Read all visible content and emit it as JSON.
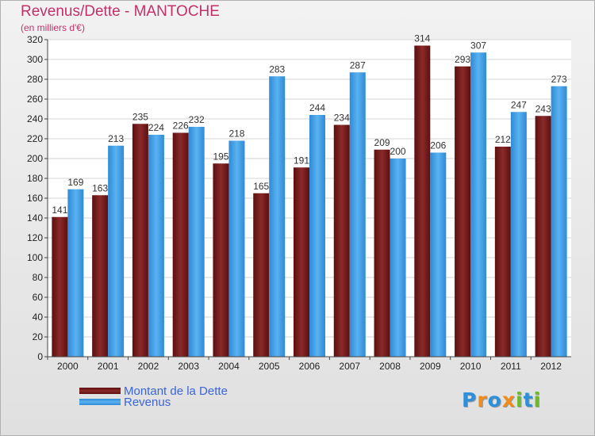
{
  "colors": {
    "debt": "#7a1e1e",
    "revenue": "#3f9ee6",
    "title": "#c2306a",
    "legend_text": "#3b64d8"
  },
  "logo": {
    "letters": [
      {
        "ch": "P",
        "color": "#2f8fd8"
      },
      {
        "ch": "r",
        "color": "#f08c1c"
      },
      {
        "ch": "o",
        "color": "#2f8fd8"
      },
      {
        "ch": "x",
        "color": "#f08c1c"
      },
      {
        "ch": "i",
        "color": "#6cbb2c"
      },
      {
        "ch": "t",
        "color": "#2f8fd8"
      },
      {
        "ch": "i",
        "color": "#6cbb2c"
      }
    ]
  },
  "chart_data": {
    "type": "bar",
    "title": "Revenus/Dette - MANTOCHE",
    "subtitle": "(en milliers d'€)",
    "xlabel": "",
    "ylabel": "",
    "ylim": [
      0,
      320
    ],
    "ytick_step": 20,
    "grid": true,
    "legend_position": "bottom-left",
    "categories": [
      "2000",
      "2001",
      "2002",
      "2003",
      "2004",
      "2005",
      "2006",
      "2007",
      "2008",
      "2009",
      "2010",
      "2011",
      "2012"
    ],
    "series": [
      {
        "name": "Montant de la Dette",
        "values": [
          141,
          163,
          235,
          226,
          195,
          165,
          191,
          234,
          209,
          314,
          293,
          212,
          243
        ]
      },
      {
        "name": "Revenus",
        "values": [
          169,
          213,
          224,
          232,
          218,
          283,
          244,
          287,
          200,
          206,
          307,
          247,
          273
        ]
      }
    ]
  }
}
